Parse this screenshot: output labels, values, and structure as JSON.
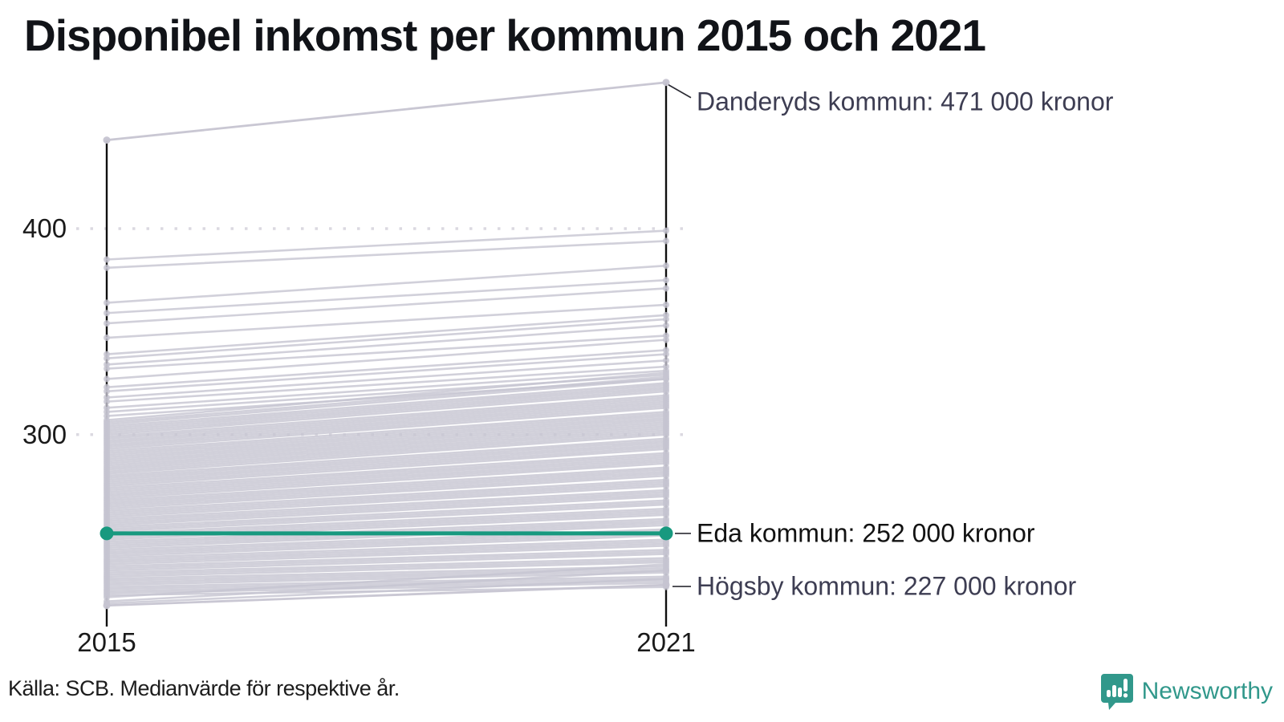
{
  "title": "Disponibel inkomst per kommun 2015 och 2021",
  "source": "Källa: SCB. Medianvärde för respektive år.",
  "branding": {
    "name": "Newsworthy",
    "color": "#31988b"
  },
  "colors": {
    "highlight": "#18997f",
    "background_line": "#c6c4d1",
    "grid": "#dbd9e1",
    "axis": "#0f0f0f",
    "annotation_dark": "#3d3d52",
    "annotation_black": "#121212"
  },
  "chart_data": {
    "type": "line",
    "subtype": "slope-chart",
    "x_categories": [
      "2015",
      "2021"
    ],
    "unit": "tusental kronor",
    "ylim": [
      210,
      480
    ],
    "yticks": [
      "400",
      "300"
    ],
    "ytick_values": [
      400,
      300
    ],
    "grid": "dotted-horizontal",
    "legend_position": "none",
    "annotations": [
      {
        "name": "Danderyds kommun",
        "text": "Danderyds kommun: 471 000 kronor",
        "value": 471
      },
      {
        "name": "Eda kommun",
        "text": "Eda kommun: 252 000 kronor",
        "value": 252
      },
      {
        "name": "Högsby kommun",
        "text": "Högsby kommun: 227 000 kronor",
        "value": 227
      }
    ],
    "labeled_series": [
      {
        "name": "Danderyds kommun",
        "values": [
          443,
          471
        ],
        "highlighted": false
      },
      {
        "name": "Eda kommun",
        "values": [
          252,
          252
        ],
        "highlighted": true
      },
      {
        "name": "Högsby kommun",
        "values": [
          217,
          227
        ],
        "highlighted": false
      }
    ],
    "background_series_values": [
      [
        385,
        399
      ],
      [
        381,
        394
      ],
      [
        364,
        382
      ],
      [
        359,
        375
      ],
      [
        354,
        371
      ],
      [
        347,
        363
      ],
      [
        339,
        358
      ],
      [
        337,
        356
      ],
      [
        334,
        353
      ],
      [
        332,
        348
      ],
      [
        327,
        346
      ],
      [
        323,
        341
      ],
      [
        321,
        339
      ],
      [
        318,
        336
      ],
      [
        316,
        333
      ],
      [
        313,
        331
      ],
      [
        311,
        329
      ],
      [
        309,
        327
      ],
      [
        307,
        330
      ],
      [
        306,
        328
      ],
      [
        305,
        327
      ],
      [
        304,
        325
      ],
      [
        303,
        324
      ],
      [
        302,
        323
      ],
      [
        301,
        322
      ],
      [
        300,
        321
      ],
      [
        299,
        319
      ],
      [
        298,
        318
      ],
      [
        297,
        317
      ],
      [
        296,
        316
      ],
      [
        295,
        315
      ],
      [
        294,
        314
      ],
      [
        293,
        313
      ],
      [
        292,
        311
      ],
      [
        291,
        310
      ],
      [
        290,
        309
      ],
      [
        289,
        308
      ],
      [
        288,
        307
      ],
      [
        287,
        306
      ],
      [
        286,
        305
      ],
      [
        285,
        304
      ],
      [
        284,
        303
      ],
      [
        283,
        302
      ],
      [
        282,
        301
      ],
      [
        281,
        300
      ],
      [
        280,
        298
      ],
      [
        279,
        297
      ],
      [
        278,
        296
      ],
      [
        277,
        295
      ],
      [
        276,
        294
      ],
      [
        275,
        293
      ],
      [
        274,
        291
      ],
      [
        273,
        290
      ],
      [
        272,
        289
      ],
      [
        271,
        288
      ],
      [
        270,
        287
      ],
      [
        269,
        286
      ],
      [
        268,
        284
      ],
      [
        267,
        283
      ],
      [
        266,
        282
      ],
      [
        265,
        281
      ],
      [
        264,
        280
      ],
      [
        263,
        278
      ],
      [
        262,
        277
      ],
      [
        261,
        276
      ],
      [
        260,
        275
      ],
      [
        259,
        273
      ],
      [
        258,
        272
      ],
      [
        257,
        271
      ],
      [
        256,
        270
      ],
      [
        255,
        268
      ],
      [
        254,
        267
      ],
      [
        253,
        266
      ],
      [
        252,
        264
      ],
      [
        251,
        263
      ],
      [
        250,
        262
      ],
      [
        249,
        261
      ],
      [
        248,
        259
      ],
      [
        247,
        258
      ],
      [
        246,
        257
      ],
      [
        245,
        256
      ],
      [
        244,
        254
      ],
      [
        243,
        253
      ],
      [
        242,
        252
      ],
      [
        241,
        251
      ],
      [
        240,
        249
      ],
      [
        239,
        248
      ],
      [
        238,
        247
      ],
      [
        237,
        246
      ],
      [
        236,
        244
      ],
      [
        235,
        243
      ],
      [
        234,
        242
      ],
      [
        233,
        240
      ],
      [
        232,
        239
      ],
      [
        231,
        238
      ],
      [
        230,
        236
      ],
      [
        229,
        235
      ],
      [
        228,
        234
      ],
      [
        227,
        233
      ],
      [
        226,
        231
      ],
      [
        225,
        230
      ],
      [
        224,
        229
      ],
      [
        223,
        228
      ],
      [
        222,
        226
      ],
      [
        221,
        237
      ],
      [
        219,
        234
      ],
      [
        218,
        230
      ]
    ]
  }
}
